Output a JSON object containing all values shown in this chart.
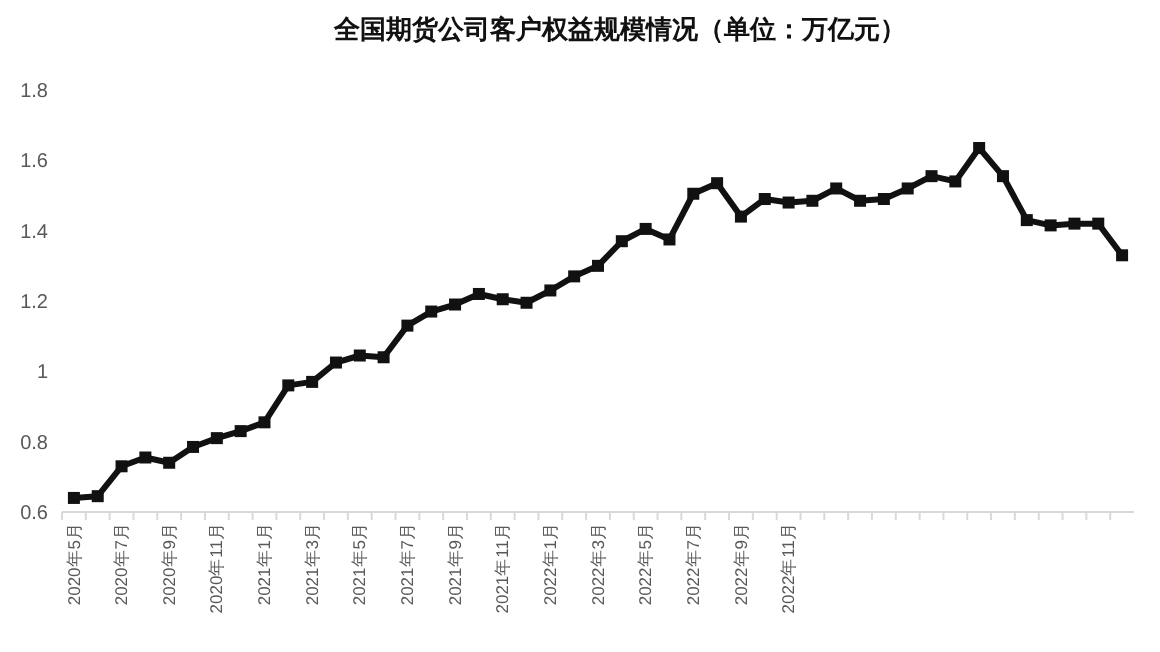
{
  "chart_data": {
    "type": "line",
    "title": "全国期货公司客户权益规模情况（单位：万亿元）",
    "categories": [
      "2020年5月",
      null,
      "2020年7月",
      null,
      "2020年9月",
      null,
      "2020年11月",
      null,
      "2021年1月",
      null,
      "2021年3月",
      null,
      "2021年5月",
      null,
      "2021年7月",
      null,
      "2021年9月",
      null,
      "2021年11月",
      null,
      "2022年1月",
      null,
      "2022年3月",
      null,
      "2022年5月",
      null,
      "2022年7月",
      null,
      "2022年9月",
      null,
      "2022年11月",
      null,
      null,
      null,
      null,
      null,
      null,
      null,
      null,
      null,
      null,
      null,
      null,
      null,
      null
    ],
    "series": [
      {
        "color": "#111111",
        "values": [
          0.64,
          0.645,
          0.73,
          0.755,
          0.74,
          0.785,
          0.81,
          0.83,
          0.855,
          0.96,
          0.97,
          1.025,
          1.045,
          1.04,
          1.13,
          1.17,
          1.19,
          1.22,
          1.205,
          1.195,
          1.23,
          1.27,
          1.3,
          1.37,
          1.405,
          1.375,
          1.505,
          1.535,
          1.44,
          1.49,
          1.48,
          1.485,
          1.52,
          1.485,
          1.49,
          1.52,
          1.555,
          1.54,
          1.635,
          1.555,
          1.43,
          1.415,
          1.42,
          1.42,
          1.33
        ]
      }
    ],
    "ylim": [
      0.6,
      1.8
    ],
    "yticks": [
      0.6,
      0.8,
      1,
      1.2,
      1.4,
      1.6,
      1.8
    ],
    "grid": false,
    "marker": "square",
    "line_style": "solid"
  }
}
